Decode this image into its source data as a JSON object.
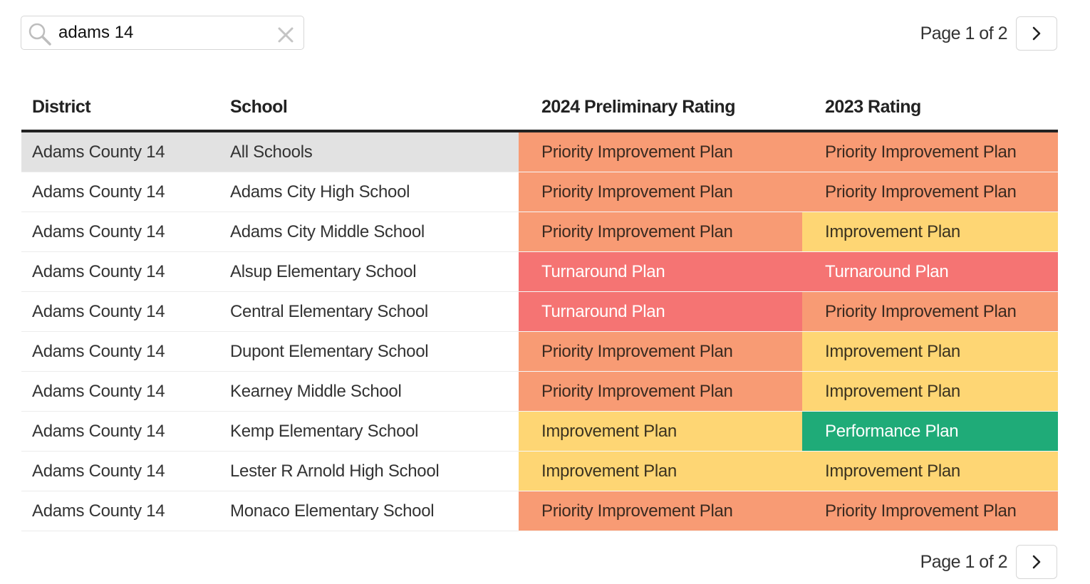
{
  "search": {
    "value": "adams 14",
    "icon": "search-icon",
    "clear_icon": "close-icon"
  },
  "pagination": {
    "text": "Page 1 of 2",
    "next_icon": "chevron-right-icon"
  },
  "table": {
    "headers": {
      "district": "District",
      "school": "School",
      "rating_2024": "2024 Preliminary Rating",
      "rating_2023": "2023 Rating"
    },
    "rows": [
      {
        "district": "Adams County 14",
        "school": "All Schools",
        "rating_2024": "Priority Improvement Plan",
        "rating_2023": "Priority Improvement Plan"
      },
      {
        "district": "Adams County 14",
        "school": "Adams City High School",
        "rating_2024": "Priority Improvement Plan",
        "rating_2023": "Priority Improvement Plan"
      },
      {
        "district": "Adams County 14",
        "school": "Adams City Middle School",
        "rating_2024": "Priority Improvement Plan",
        "rating_2023": "Improvement Plan"
      },
      {
        "district": "Adams County 14",
        "school": "Alsup Elementary School",
        "rating_2024": "Turnaround Plan",
        "rating_2023": "Turnaround Plan"
      },
      {
        "district": "Adams County 14",
        "school": "Central Elementary School",
        "rating_2024": "Turnaround Plan",
        "rating_2023": "Priority Improvement Plan"
      },
      {
        "district": "Adams County 14",
        "school": "Dupont Elementary School",
        "rating_2024": "Priority Improvement Plan",
        "rating_2023": "Improvement Plan"
      },
      {
        "district": "Adams County 14",
        "school": "Kearney Middle School",
        "rating_2024": "Priority Improvement Plan",
        "rating_2023": "Improvement Plan"
      },
      {
        "district": "Adams County 14",
        "school": "Kemp Elementary School",
        "rating_2024": "Improvement Plan",
        "rating_2023": "Performance Plan"
      },
      {
        "district": "Adams County 14",
        "school": "Lester R Arnold High School",
        "rating_2024": "Improvement Plan",
        "rating_2023": "Improvement Plan"
      },
      {
        "district": "Adams County 14",
        "school": "Monaco Elementary School",
        "rating_2024": "Priority Improvement Plan",
        "rating_2023": "Priority Improvement Plan"
      }
    ]
  },
  "colors": {
    "priority_improvement": "#f89b74",
    "improvement": "#fed674",
    "turnaround": "#f57473",
    "performance": "#1fab78",
    "highlight_row": "#e2e2e2"
  }
}
